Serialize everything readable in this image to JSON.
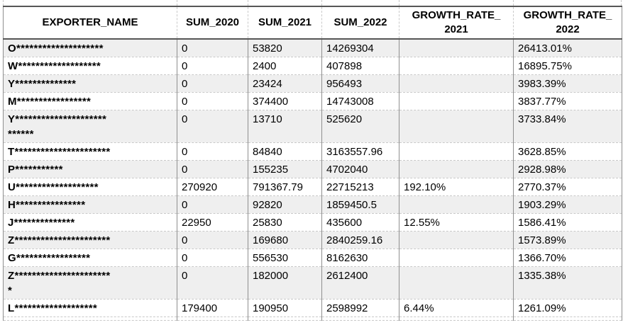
{
  "colors": {
    "alt_row": "#efefef",
    "grid_light": "#c9c9c9",
    "grid_mid": "#8f8f8f",
    "border_dark": "#565656",
    "text": "#000000"
  },
  "table": {
    "columns": [
      {
        "key": "exporter",
        "label": "EXPORTER_NAME"
      },
      {
        "key": "sum2020",
        "label": "SUM_2020"
      },
      {
        "key": "sum2021",
        "label": "SUM_2021"
      },
      {
        "key": "sum2022",
        "label": "SUM_2022"
      },
      {
        "key": "gr2021",
        "label_line1": "GROWTH_RATE_",
        "label_line2": "2021"
      },
      {
        "key": "gr2022",
        "label_line1": "GROWTH_RATE_",
        "label_line2": "2022"
      }
    ],
    "rows": [
      {
        "exporter": "O********************",
        "sum2020": "0",
        "sum2021": "53820",
        "sum2022": "14269304",
        "gr2021": "",
        "gr2022": "26413.01%"
      },
      {
        "exporter": "W*******************",
        "sum2020": "0",
        "sum2021": "2400",
        "sum2022": "407898",
        "gr2021": "",
        "gr2022": "16895.75%"
      },
      {
        "exporter": "Y**************",
        "sum2020": "0",
        "sum2021": "23424",
        "sum2022": "956493",
        "gr2021": "",
        "gr2022": "3983.39%"
      },
      {
        "exporter": "M*****************",
        "sum2020": "0",
        "sum2021": "374400",
        "sum2022": "14743008",
        "gr2021": "",
        "gr2022": "3837.77%"
      },
      {
        "exporter": "Y*********************\n******",
        "sum2020": "0",
        "sum2021": "13710",
        "sum2022": "525620",
        "gr2021": "",
        "gr2022": "3733.84%"
      },
      {
        "exporter": "T**********************",
        "sum2020": "0",
        "sum2021": "84840",
        "sum2022": "3163557.96",
        "gr2021": "",
        "gr2022": "3628.85%"
      },
      {
        "exporter": "P***********",
        "sum2020": "0",
        "sum2021": "155235",
        "sum2022": "4702040",
        "gr2021": "",
        "gr2022": "2928.98%"
      },
      {
        "exporter": "U*******************",
        "sum2020": "270920",
        "sum2021": "791367.79",
        "sum2022": "22715213",
        "gr2021": "192.10%",
        "gr2022": "2770.37%"
      },
      {
        "exporter": "H****************",
        "sum2020": "0",
        "sum2021": "92820",
        "sum2022": "1859450.5",
        "gr2021": "",
        "gr2022": "1903.29%"
      },
      {
        "exporter": "J**************",
        "sum2020": "22950",
        "sum2021": "25830",
        "sum2022": "435600",
        "gr2021": "12.55%",
        "gr2022": "1586.41%"
      },
      {
        "exporter": "Z**********************",
        "sum2020": "0",
        "sum2021": "169680",
        "sum2022": "2840259.16",
        "gr2021": "",
        "gr2022": "1573.89%"
      },
      {
        "exporter": "G*****************",
        "sum2020": "0",
        "sum2021": "556530",
        "sum2022": "8162630",
        "gr2021": "",
        "gr2022": "1366.70%"
      },
      {
        "exporter": "Z**********************\n*",
        "sum2020": "0",
        "sum2021": "182000",
        "sum2022": "2612400",
        "gr2021": "",
        "gr2022": "1335.38%"
      },
      {
        "exporter": "L*******************",
        "sum2020": "179400",
        "sum2021": "190950",
        "sum2022": "2598992",
        "gr2021": "6.44%",
        "gr2022": "1261.09%"
      }
    ],
    "gridline_offsets": [
      4,
      249,
      349,
      453,
      562,
      723,
      875
    ]
  }
}
